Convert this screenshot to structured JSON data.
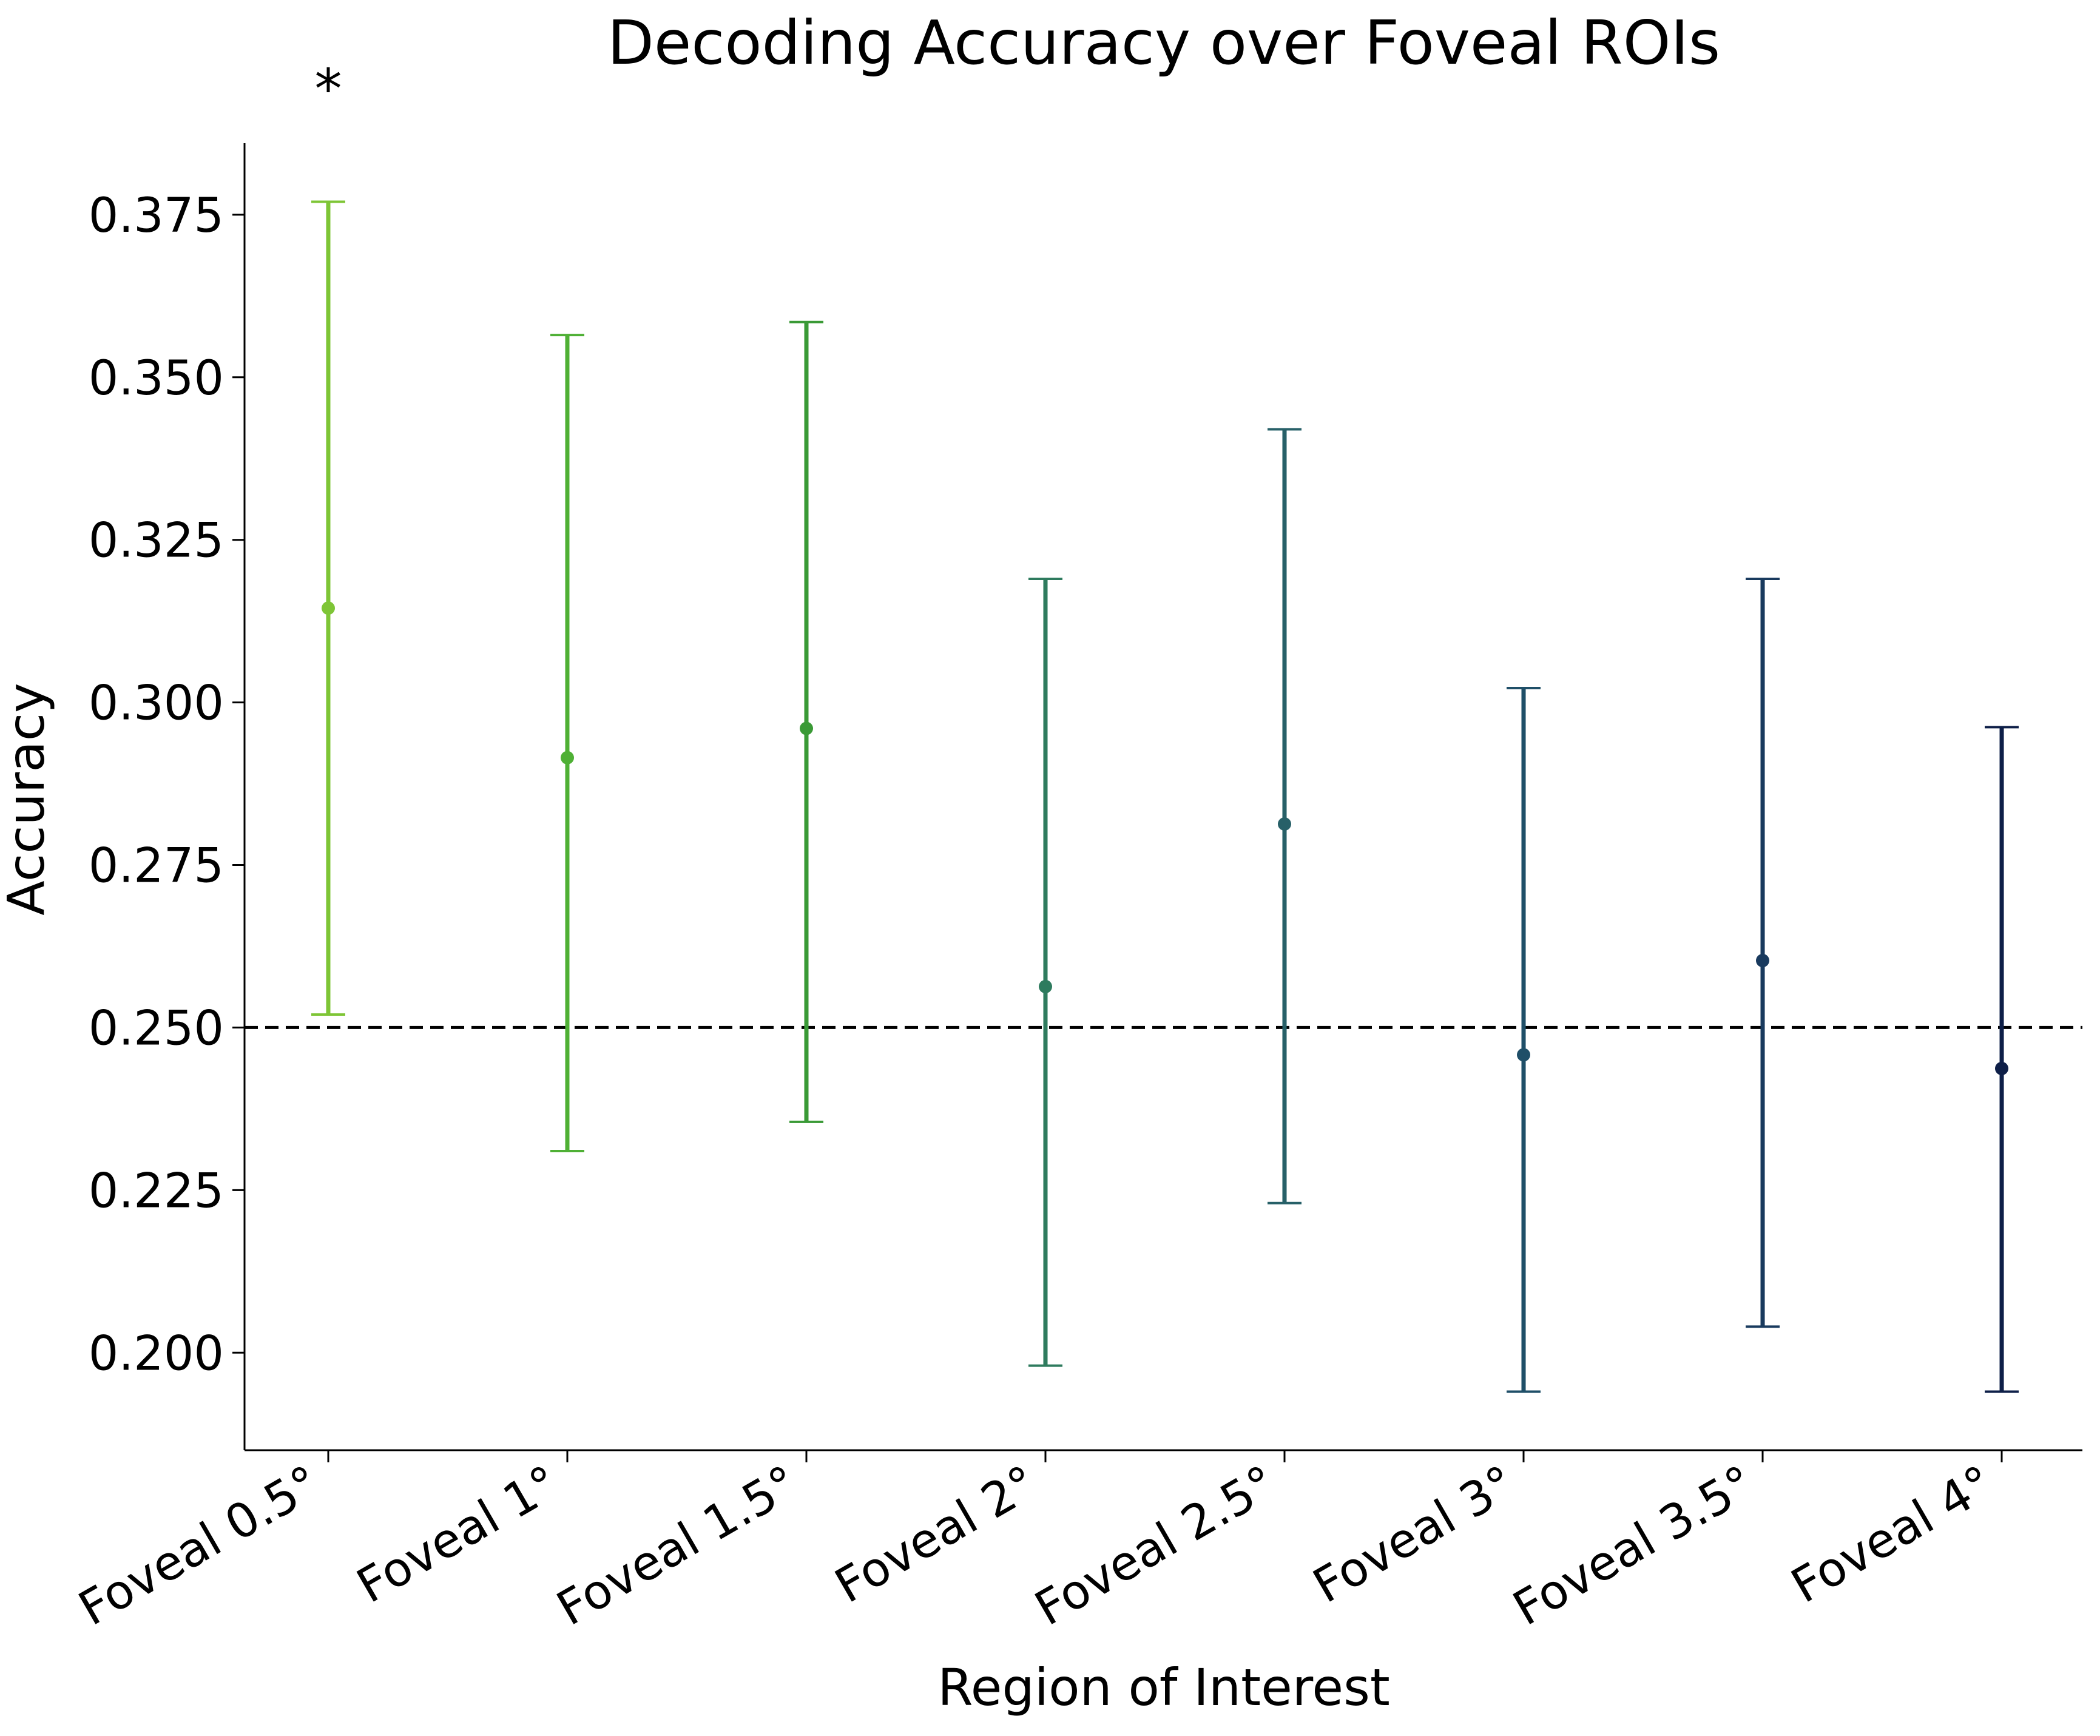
{
  "chart_data": {
    "type": "scatter",
    "title": "Decoding Accuracy over Foveal ROIs",
    "xlabel": "Region of Interest",
    "ylabel": "Accuracy",
    "categories": [
      "Foveal 0.5°",
      "Foveal 1°",
      "Foveal 1.5°",
      "Foveal 2°",
      "Foveal 2.5°",
      "Foveal 3°",
      "Foveal 3.5°",
      "Foveal 4°"
    ],
    "values": [
      0.3145,
      0.2915,
      0.296,
      0.2563,
      0.2813,
      0.2458,
      0.2603,
      0.2437
    ],
    "error_low": [
      0.252,
      0.231,
      0.2355,
      0.198,
      0.223,
      0.194,
      0.204,
      0.194
    ],
    "error_high": [
      0.377,
      0.3565,
      0.3585,
      0.319,
      0.342,
      0.3022,
      0.319,
      0.2962
    ],
    "colors": [
      "#7ec536",
      "#4fb035",
      "#3a9a36",
      "#2e7b5e",
      "#276068",
      "#1f4f68",
      "#193a5e",
      "#0e1f48"
    ],
    "yticks": [
      "0.200",
      "0.225",
      "0.250",
      "0.275",
      "0.300",
      "0.325",
      "0.350",
      "0.375"
    ],
    "ylim": [
      0.185,
      0.386
    ],
    "reference_line": 0.25,
    "reference_style": "dashed black",
    "significance_markers": [
      {
        "category": "Foveal 0.5°",
        "text": "*"
      }
    ],
    "grid": false,
    "legend": "none"
  }
}
